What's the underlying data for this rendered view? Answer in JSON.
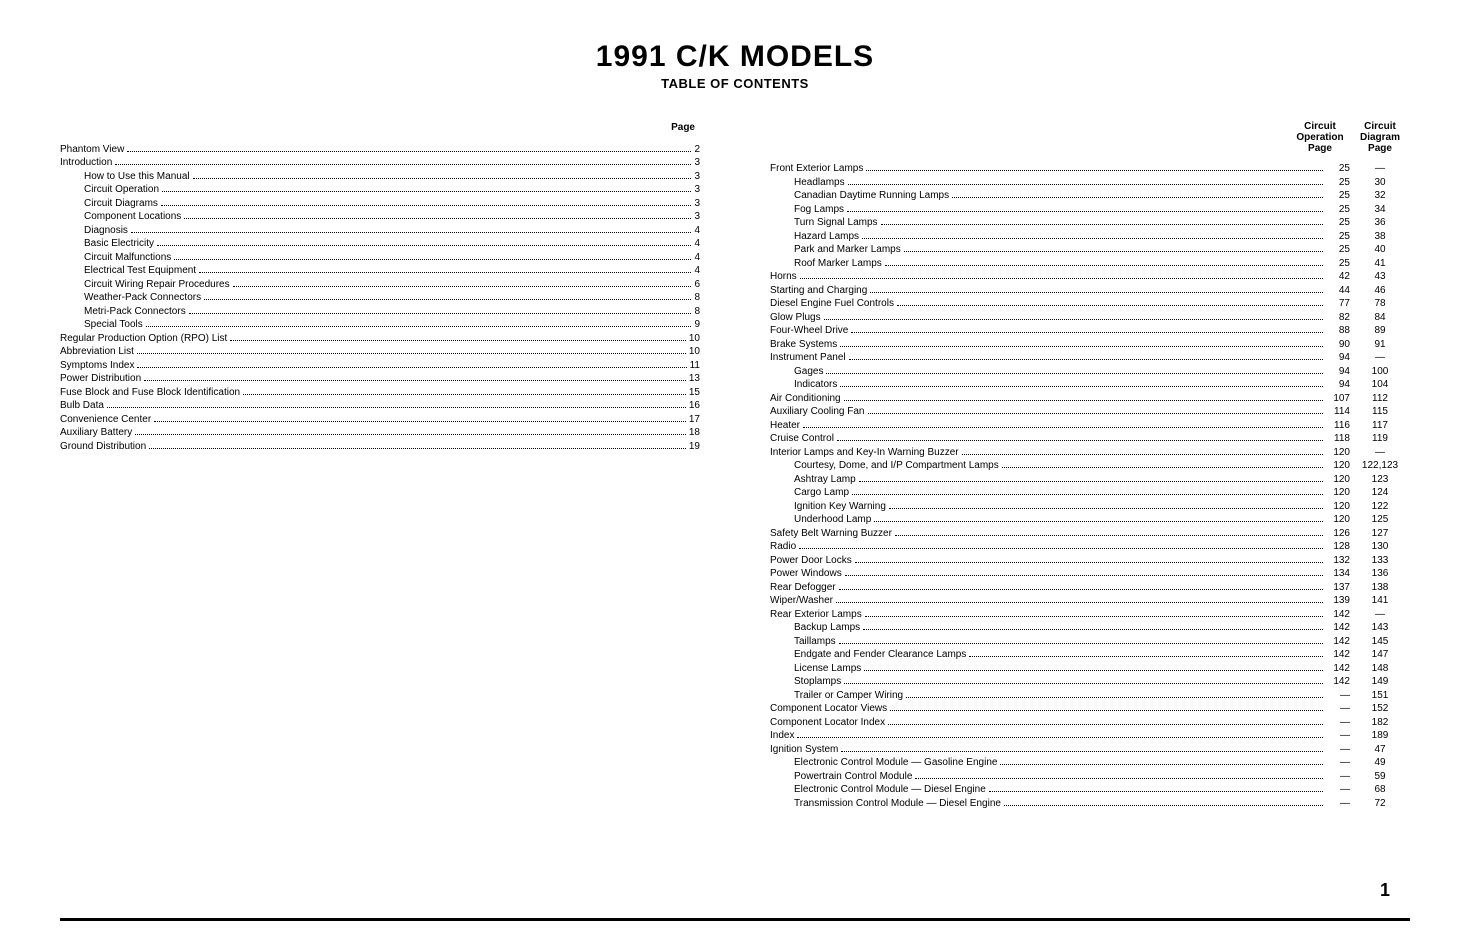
{
  "title": "1991 C/K MODELS",
  "subtitle": "TABLE OF CONTENTS",
  "page_number": "1",
  "left_header": "Page",
  "right_header_op_line1": "Circuit",
  "right_header_op_line2": "Operation",
  "right_header_op_line3": "Page",
  "right_header_dg_line1": "Circuit",
  "right_header_dg_line2": "Diagram",
  "right_header_dg_line3": "Page",
  "left_entries": [
    {
      "label": "Phantom View",
      "page": "2",
      "indent": 0
    },
    {
      "label": "Introduction",
      "page": "3",
      "indent": 0
    },
    {
      "label": "How to Use this Manual",
      "page": "3",
      "indent": 1
    },
    {
      "label": "Circuit Operation",
      "page": "3",
      "indent": 1
    },
    {
      "label": "Circuit Diagrams",
      "page": "3",
      "indent": 1
    },
    {
      "label": "Component Locations",
      "page": "3",
      "indent": 1
    },
    {
      "label": "Diagnosis",
      "page": "4",
      "indent": 1
    },
    {
      "label": "Basic Electricity",
      "page": "4",
      "indent": 1
    },
    {
      "label": "Circuit Malfunctions",
      "page": "4",
      "indent": 1
    },
    {
      "label": "Electrical Test Equipment",
      "page": "4",
      "indent": 1
    },
    {
      "label": "Circuit Wiring Repair Procedures",
      "page": "6",
      "indent": 1
    },
    {
      "label": "Weather-Pack Connectors",
      "page": "8",
      "indent": 1
    },
    {
      "label": "Metri-Pack Connectors",
      "page": "8",
      "indent": 1
    },
    {
      "label": "Special Tools",
      "page": "9",
      "indent": 1
    },
    {
      "label": "Regular Production Option (RPO) List",
      "page": "10",
      "indent": 0
    },
    {
      "label": "Abbreviation List",
      "page": "10",
      "indent": 0
    },
    {
      "label": "Symptoms Index",
      "page": "11",
      "indent": 0
    },
    {
      "label": "Power Distribution",
      "page": "13",
      "indent": 0
    },
    {
      "label": "Fuse Block and Fuse Block Identification",
      "page": "15",
      "indent": 0
    },
    {
      "label": "Bulb Data",
      "page": "16",
      "indent": 0
    },
    {
      "label": "Convenience Center",
      "page": "17",
      "indent": 0
    },
    {
      "label": "Auxiliary Battery",
      "page": "18",
      "indent": 0
    },
    {
      "label": "Ground Distribution",
      "page": "19",
      "indent": 0
    }
  ],
  "right_entries": [
    {
      "label": "Front Exterior Lamps",
      "op": "25",
      "dg": "—",
      "indent": 0
    },
    {
      "label": "Headlamps",
      "op": "25",
      "dg": "30",
      "indent": 1
    },
    {
      "label": "Canadian Daytime Running Lamps",
      "op": "25",
      "dg": "32",
      "indent": 1
    },
    {
      "label": "Fog Lamps",
      "op": "25",
      "dg": "34",
      "indent": 1
    },
    {
      "label": "Turn Signal Lamps",
      "op": "25",
      "dg": "36",
      "indent": 1
    },
    {
      "label": "Hazard Lamps",
      "op": "25",
      "dg": "38",
      "indent": 1
    },
    {
      "label": "Park and Marker Lamps",
      "op": "25",
      "dg": "40",
      "indent": 1
    },
    {
      "label": "Roof Marker Lamps",
      "op": "25",
      "dg": "41",
      "indent": 1
    },
    {
      "label": "Horns",
      "op": "42",
      "dg": "43",
      "indent": 0
    },
    {
      "label": "Starting and Charging",
      "op": "44",
      "dg": "46",
      "indent": 0
    },
    {
      "label": "Diesel Engine Fuel Controls",
      "op": "77",
      "dg": "78",
      "indent": 0
    },
    {
      "label": "Glow Plugs",
      "op": "82",
      "dg": "84",
      "indent": 0
    },
    {
      "label": "Four-Wheel Drive",
      "op": "88",
      "dg": "89",
      "indent": 0
    },
    {
      "label": "Brake Systems",
      "op": "90",
      "dg": "91",
      "indent": 0
    },
    {
      "label": "Instrument Panel",
      "op": "94",
      "dg": "—",
      "indent": 0
    },
    {
      "label": "Gages",
      "op": "94",
      "dg": "100",
      "indent": 1
    },
    {
      "label": "Indicators",
      "op": "94",
      "dg": "104",
      "indent": 1
    },
    {
      "label": "Air Conditioning",
      "op": "107",
      "dg": "112",
      "indent": 0
    },
    {
      "label": "Auxiliary Cooling Fan",
      "op": "114",
      "dg": "115",
      "indent": 0
    },
    {
      "label": "Heater",
      "op": "116",
      "dg": "117",
      "indent": 0
    },
    {
      "label": "Cruise Control",
      "op": "118",
      "dg": "119",
      "indent": 0
    },
    {
      "label": "Interior Lamps and Key-In Warning Buzzer",
      "op": "120",
      "dg": "—",
      "indent": 0
    },
    {
      "label": "Courtesy, Dome, and I/P Compartment Lamps",
      "op": "120",
      "dg": "122,123",
      "indent": 1
    },
    {
      "label": "Ashtray Lamp",
      "op": "120",
      "dg": "123",
      "indent": 1
    },
    {
      "label": "Cargo Lamp",
      "op": "120",
      "dg": "124",
      "indent": 1
    },
    {
      "label": "Ignition Key Warning",
      "op": "120",
      "dg": "122",
      "indent": 1
    },
    {
      "label": "Underhood Lamp",
      "op": "120",
      "dg": "125",
      "indent": 1
    },
    {
      "label": "Safety Belt Warning Buzzer",
      "op": "126",
      "dg": "127",
      "indent": 0
    },
    {
      "label": "Radio",
      "op": "128",
      "dg": "130",
      "indent": 0
    },
    {
      "label": "Power Door Locks",
      "op": "132",
      "dg": "133",
      "indent": 0
    },
    {
      "label": "Power Windows",
      "op": "134",
      "dg": "136",
      "indent": 0
    },
    {
      "label": "Rear Defogger",
      "op": "137",
      "dg": "138",
      "indent": 0
    },
    {
      "label": "Wiper/Washer",
      "op": "139",
      "dg": "141",
      "indent": 0
    },
    {
      "label": "Rear Exterior Lamps",
      "op": "142",
      "dg": "—",
      "indent": 0
    },
    {
      "label": "Backup Lamps",
      "op": "142",
      "dg": "143",
      "indent": 1
    },
    {
      "label": "Taillamps",
      "op": "142",
      "dg": "145",
      "indent": 1
    },
    {
      "label": "Endgate and Fender Clearance Lamps",
      "op": "142",
      "dg": "147",
      "indent": 1
    },
    {
      "label": "License Lamps",
      "op": "142",
      "dg": "148",
      "indent": 1
    },
    {
      "label": "Stoplamps",
      "op": "142",
      "dg": "149",
      "indent": 1
    },
    {
      "label": "Trailer or Camper Wiring",
      "op": "—",
      "dg": "151",
      "indent": 1
    },
    {
      "label": "Component Locator Views",
      "op": "—",
      "dg": "152",
      "indent": 0
    },
    {
      "label": "Component Locator Index",
      "op": "—",
      "dg": "182",
      "indent": 0
    },
    {
      "label": "Index",
      "op": "—",
      "dg": "189",
      "indent": 0
    },
    {
      "label": "Ignition System",
      "op": "—",
      "dg": "47",
      "indent": 0
    },
    {
      "label": "Electronic Control Module — Gasoline Engine",
      "op": "—",
      "dg": "49",
      "indent": 1
    },
    {
      "label": "Powertrain Control Module",
      "op": "—",
      "dg": "59",
      "indent": 1
    },
    {
      "label": "Electronic Control Module — Diesel Engine",
      "op": "—",
      "dg": "68",
      "indent": 1
    },
    {
      "label": "Transmission Control Module — Diesel Engine",
      "op": "—",
      "dg": "72",
      "indent": 1
    }
  ]
}
